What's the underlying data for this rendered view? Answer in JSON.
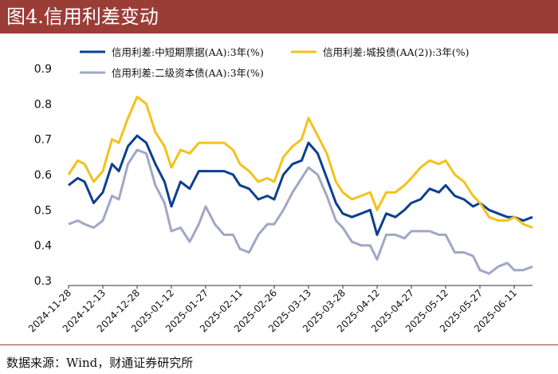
{
  "header": {
    "title": "图4.信用利差变动"
  },
  "footer": {
    "source": "数据来源：Wind，财通证券研究所"
  },
  "chart_data": {
    "type": "line",
    "title": "图4.信用利差变动",
    "ylim": [
      0.3,
      0.9
    ],
    "yticks": [
      "0.3",
      "0.4",
      "0.5",
      "0.6",
      "0.7",
      "0.8",
      "0.9"
    ],
    "grid": false,
    "legend_position": "top",
    "xtick_labels": [
      "2024-11-28",
      "2024-12-13",
      "2024-12-28",
      "2025-01-12",
      "2025-01-27",
      "2025-02-11",
      "2025-02-26",
      "2025-03-13",
      "2025-03-28",
      "2025-04-12",
      "2025-04-27",
      "2025-05-12",
      "2025-05-27",
      "2025-06-11"
    ],
    "x": [
      "2024-11-28",
      "2024-12-02",
      "2024-12-05",
      "2024-12-09",
      "2024-12-13",
      "2024-12-17",
      "2024-12-20",
      "2024-12-24",
      "2024-12-28",
      "2025-01-01",
      "2025-01-05",
      "2025-01-09",
      "2025-01-12",
      "2025-01-16",
      "2025-01-20",
      "2025-01-24",
      "2025-01-27",
      "2025-01-31",
      "2025-02-04",
      "2025-02-08",
      "2025-02-11",
      "2025-02-15",
      "2025-02-19",
      "2025-02-23",
      "2025-02-26",
      "2025-03-02",
      "2025-03-06",
      "2025-03-10",
      "2025-03-13",
      "2025-03-17",
      "2025-03-21",
      "2025-03-25",
      "2025-03-28",
      "2025-04-01",
      "2025-04-05",
      "2025-04-09",
      "2025-04-12",
      "2025-04-16",
      "2025-04-20",
      "2025-04-24",
      "2025-04-27",
      "2025-05-01",
      "2025-05-05",
      "2025-05-09",
      "2025-05-12",
      "2025-05-16",
      "2025-05-20",
      "2025-05-24",
      "2025-05-27",
      "2025-05-31",
      "2025-06-04",
      "2025-06-08",
      "2025-06-11",
      "2025-06-15",
      "2025-06-19"
    ],
    "series": [
      {
        "name": "信用利差:中短期票据(AA):3年(%)",
        "color": "#0b3f91",
        "values": [
          0.57,
          0.59,
          0.58,
          0.52,
          0.55,
          0.63,
          0.61,
          0.68,
          0.71,
          0.69,
          0.63,
          0.58,
          0.51,
          0.58,
          0.56,
          0.61,
          0.61,
          0.61,
          0.61,
          0.6,
          0.57,
          0.56,
          0.53,
          0.54,
          0.53,
          0.6,
          0.63,
          0.64,
          0.69,
          0.66,
          0.59,
          0.52,
          0.49,
          0.48,
          0.49,
          0.5,
          0.43,
          0.49,
          0.48,
          0.5,
          0.52,
          0.53,
          0.56,
          0.55,
          0.57,
          0.54,
          0.53,
          0.51,
          0.52,
          0.5,
          0.49,
          0.48,
          0.48,
          0.47,
          0.48
        ]
      },
      {
        "name": "信用利差:城投债(AA(2)):3年(%)",
        "color": "#f3c21b",
        "values": [
          0.6,
          0.64,
          0.63,
          0.58,
          0.61,
          0.7,
          0.69,
          0.76,
          0.82,
          0.8,
          0.72,
          0.68,
          0.62,
          0.67,
          0.66,
          0.69,
          0.69,
          0.69,
          0.69,
          0.67,
          0.63,
          0.61,
          0.58,
          0.59,
          0.58,
          0.65,
          0.68,
          0.7,
          0.76,
          0.71,
          0.66,
          0.58,
          0.55,
          0.53,
          0.54,
          0.55,
          0.5,
          0.55,
          0.55,
          0.57,
          0.59,
          0.62,
          0.64,
          0.63,
          0.64,
          0.6,
          0.58,
          0.54,
          0.52,
          0.48,
          0.47,
          0.47,
          0.48,
          0.46,
          0.45
        ]
      },
      {
        "name": "信用利差:二级资本债(AA):3年(%)",
        "color": "#a0a7c6",
        "values": [
          0.46,
          0.47,
          0.46,
          0.45,
          0.47,
          0.54,
          0.53,
          0.63,
          0.67,
          0.66,
          0.57,
          0.52,
          0.44,
          0.45,
          0.41,
          0.46,
          0.51,
          0.46,
          0.43,
          0.43,
          0.39,
          0.38,
          0.43,
          0.46,
          0.46,
          0.5,
          0.55,
          0.59,
          0.62,
          0.6,
          0.54,
          0.47,
          0.45,
          0.41,
          0.4,
          0.4,
          0.36,
          0.43,
          0.43,
          0.42,
          0.44,
          0.44,
          0.44,
          0.43,
          0.43,
          0.38,
          0.38,
          0.37,
          0.33,
          0.32,
          0.34,
          0.35,
          0.33,
          0.33,
          0.34
        ]
      }
    ]
  }
}
